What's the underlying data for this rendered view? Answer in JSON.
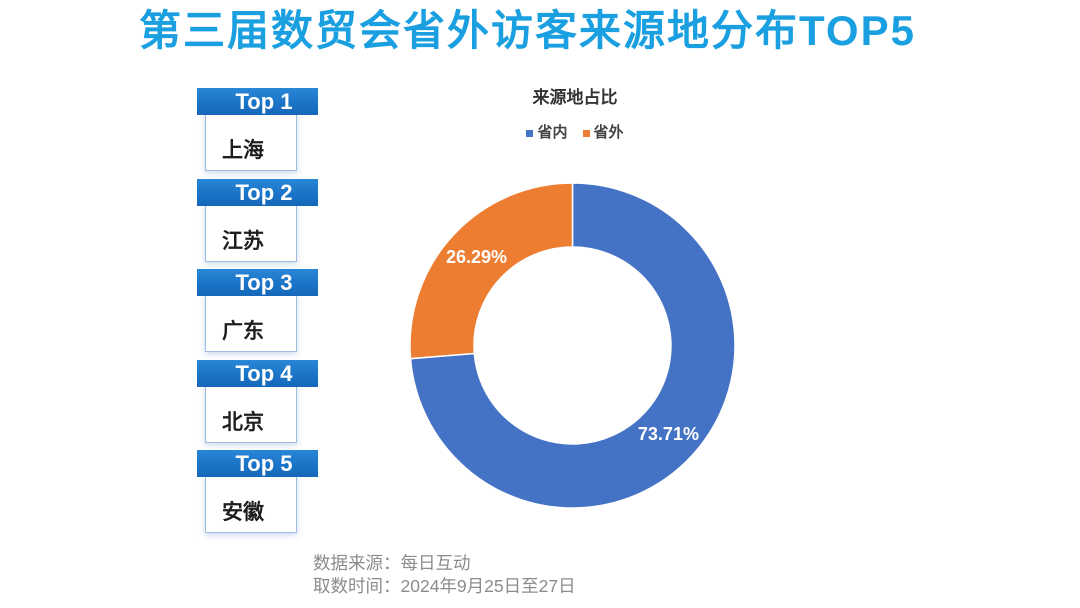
{
  "title": "第三届数贸会省外访客来源地分布TOP5",
  "colors": {
    "title": "#1a9fe0",
    "tab": "#1a74c7"
  },
  "ranking": [
    {
      "rank": "Top 1",
      "name": "上海"
    },
    {
      "rank": "Top 2",
      "name": "江苏"
    },
    {
      "rank": "Top 3",
      "name": "广东"
    },
    {
      "rank": "Top 4",
      "name": "北京"
    },
    {
      "rank": "Top 5",
      "name": "安徽"
    }
  ],
  "chart_data": {
    "type": "pie",
    "donut": true,
    "title": "来源地占比",
    "categories": [
      "省内",
      "省外"
    ],
    "values": [
      73.71,
      26.29
    ],
    "data_labels": [
      "73.71%",
      "26.29%"
    ],
    "colors": [
      "#4472c4",
      "#ed7d31"
    ],
    "legend": "top"
  },
  "footer": {
    "source": "数据来源：每日互动",
    "time": "取数时间：2024年9月25日至27日"
  }
}
